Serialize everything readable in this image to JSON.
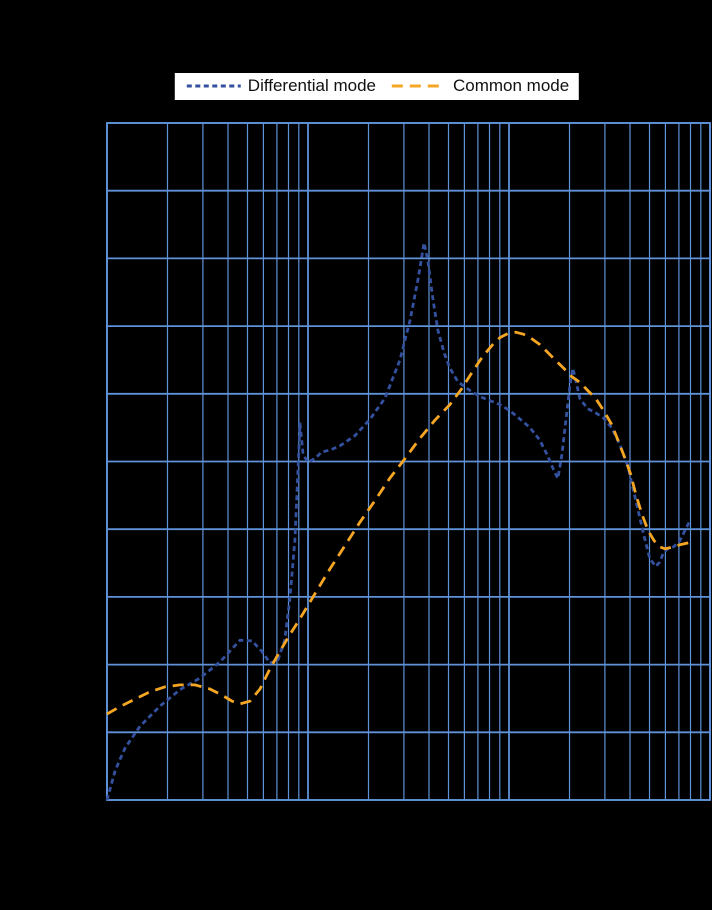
{
  "colors": {
    "background": "#000000",
    "grid": "#5f92d8",
    "legend_background": "#ffffff",
    "differential": "#34519f",
    "common": "#f5a623"
  },
  "legend": {
    "items": [
      {
        "key": "differential_mode",
        "label": "Differential mode",
        "color": "#34519f",
        "dash": "5 3.5"
      },
      {
        "key": "common_mode",
        "label": "Common mode",
        "color": "#f5a623",
        "dash": "11 7"
      }
    ]
  },
  "chart_data": {
    "type": "line",
    "title": "",
    "xlabel": "",
    "ylabel": "",
    "x_scale": "log",
    "x_range": [
      1,
      1000
    ],
    "y_scale": "linear",
    "y_range": [
      0,
      100
    ],
    "y_gridline_step": 10,
    "grid": true,
    "legend_position": "top",
    "axis_tick_labels_visible": false,
    "series": [
      {
        "name": "Differential mode",
        "key": "differential_mode",
        "color": "#34519f",
        "dash": "5 3.5",
        "points": [
          [
            1.0,
            0
          ],
          [
            1.1,
            4.4
          ],
          [
            1.23,
            7.7
          ],
          [
            1.46,
            10.9
          ],
          [
            1.84,
            13.9
          ],
          [
            2.31,
            16.3
          ],
          [
            2.9,
            18.0
          ],
          [
            3.65,
            20.4
          ],
          [
            4.59,
            23.6
          ],
          [
            5.27,
            23.5
          ],
          [
            5.91,
            21.9
          ],
          [
            6.47,
            20.2
          ],
          [
            7.09,
            20.7
          ],
          [
            7.66,
            23.6
          ],
          [
            8.12,
            29.6
          ],
          [
            8.61,
            38.4
          ],
          [
            8.92,
            48.8
          ],
          [
            9.12,
            55.6
          ],
          [
            9.45,
            51.0
          ],
          [
            10.0,
            49.9
          ],
          [
            10.9,
            50.5
          ],
          [
            11.7,
            51.4
          ],
          [
            12.9,
            51.7
          ],
          [
            14.4,
            52.3
          ],
          [
            17.1,
            53.8
          ],
          [
            20.3,
            56.2
          ],
          [
            24.2,
            59.4
          ],
          [
            28.7,
            65.0
          ],
          [
            32.2,
            70.9
          ],
          [
            35.2,
            76.8
          ],
          [
            37.8,
            82.3
          ],
          [
            39.6,
            79.4
          ],
          [
            41.9,
            73.8
          ],
          [
            44.3,
            69.4
          ],
          [
            47.5,
            66.1
          ],
          [
            50.8,
            63.8
          ],
          [
            55.6,
            61.8
          ],
          [
            63.8,
            60.5
          ],
          [
            71.6,
            59.6
          ],
          [
            80.3,
            59.0
          ],
          [
            90.1,
            58.4
          ],
          [
            101,
            57.5
          ],
          [
            113,
            56.3
          ],
          [
            127,
            55.0
          ],
          [
            142,
            53.2
          ],
          [
            156,
            50.8
          ],
          [
            167,
            48.7
          ],
          [
            175,
            47.5
          ],
          [
            183,
            50.9
          ],
          [
            192,
            56.1
          ],
          [
            201,
            61.2
          ],
          [
            208,
            63.8
          ],
          [
            215,
            62.0
          ],
          [
            225,
            59.3
          ],
          [
            246,
            57.8
          ],
          [
            270,
            57.2
          ],
          [
            296,
            56.4
          ],
          [
            324,
            55.0
          ],
          [
            356,
            52.5
          ],
          [
            390,
            49.3
          ],
          [
            428,
            44.2
          ],
          [
            469,
            39.1
          ],
          [
            501,
            35.7
          ],
          [
            536,
            34.5
          ],
          [
            561,
            35.1
          ],
          [
            587,
            36.5
          ],
          [
            615,
            37.1
          ],
          [
            660,
            37.4
          ],
          [
            708,
            38.3
          ],
          [
            760,
            40.1
          ],
          [
            787,
            41.0
          ]
        ]
      },
      {
        "name": "Common mode",
        "key": "common_mode",
        "color": "#f5a623",
        "dash": "11 7",
        "points": [
          [
            1.0,
            12.7
          ],
          [
            1.16,
            13.8
          ],
          [
            1.38,
            14.9
          ],
          [
            1.64,
            16.0
          ],
          [
            1.94,
            16.7
          ],
          [
            2.31,
            17.0
          ],
          [
            2.74,
            17.0
          ],
          [
            3.25,
            16.4
          ],
          [
            3.73,
            15.5
          ],
          [
            4.19,
            14.6
          ],
          [
            4.59,
            14.2
          ],
          [
            5.14,
            14.6
          ],
          [
            5.77,
            16.4
          ],
          [
            6.47,
            19.4
          ],
          [
            7.26,
            22.0
          ],
          [
            8.12,
            24.4
          ],
          [
            9.12,
            26.8
          ],
          [
            10.9,
            30.6
          ],
          [
            12.9,
            34.2
          ],
          [
            15.3,
            37.6
          ],
          [
            18.1,
            41.0
          ],
          [
            21.5,
            44.2
          ],
          [
            25.5,
            47.5
          ],
          [
            30.3,
            50.4
          ],
          [
            36.0,
            53.4
          ],
          [
            42.8,
            56.1
          ],
          [
            50.8,
            58.4
          ],
          [
            58.3,
            60.8
          ],
          [
            65.6,
            63.2
          ],
          [
            73.9,
            65.5
          ],
          [
            83.2,
            67.3
          ],
          [
            90.1,
            68.3
          ],
          [
            98.6,
            68.9
          ],
          [
            108,
            69.1
          ],
          [
            118,
            68.8
          ],
          [
            129,
            68.2
          ],
          [
            142,
            67.3
          ],
          [
            156,
            66.1
          ],
          [
            171,
            64.9
          ],
          [
            187,
            63.8
          ],
          [
            204,
            62.6
          ],
          [
            225,
            61.7
          ],
          [
            246,
            60.5
          ],
          [
            270,
            59.3
          ],
          [
            296,
            57.5
          ],
          [
            324,
            55.5
          ],
          [
            349,
            53.1
          ],
          [
            375,
            50.7
          ],
          [
            403,
            48.1
          ],
          [
            428,
            45.1
          ],
          [
            459,
            42.2
          ],
          [
            492,
            39.8
          ],
          [
            527,
            38.3
          ],
          [
            561,
            37.4
          ],
          [
            598,
            37.1
          ],
          [
            640,
            37.3
          ],
          [
            708,
            37.7
          ],
          [
            787,
            38.0
          ]
        ]
      }
    ]
  }
}
